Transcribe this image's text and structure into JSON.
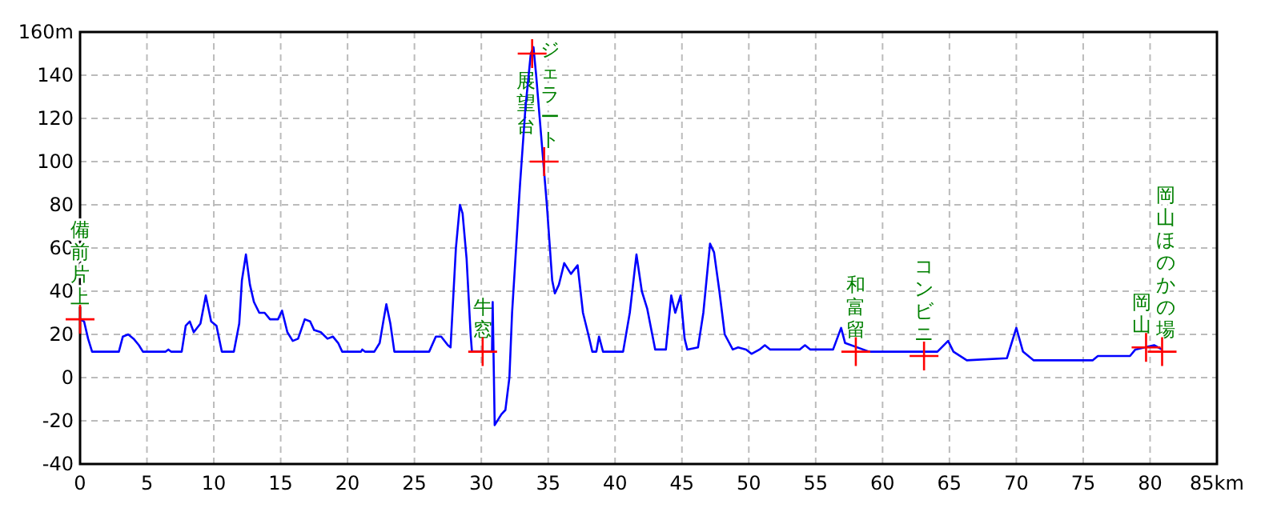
{
  "chart_data": {
    "type": "line",
    "x": [
      0,
      0.3,
      0.6,
      0.9,
      2.9,
      3.2,
      3.6,
      4.0,
      4.4,
      4.7,
      6.4,
      6.6,
      6.8,
      7.6,
      7.9,
      8.2,
      8.5,
      9.0,
      9.4,
      9.8,
      10.2,
      10.6,
      11.5,
      11.9,
      12.1,
      12.4,
      12.7,
      13.0,
      13.4,
      13.8,
      14.2,
      14.8,
      15.1,
      15.5,
      15.9,
      16.3,
      16.8,
      17.2,
      17.5,
      18.0,
      18.5,
      18.9,
      19.3,
      19.6,
      21.0,
      21.1,
      21.3,
      22.0,
      22.4,
      22.7,
      22.9,
      23.2,
      23.5,
      26.1,
      26.6,
      27.0,
      27.5,
      27.7,
      28.1,
      28.4,
      28.6,
      28.9,
      29.2,
      29.3,
      30.8,
      30.85,
      31.0,
      31.5,
      31.8,
      32.1,
      32.3,
      32.6,
      32.9,
      33.3,
      33.7,
      33.9,
      34.1,
      34.5,
      34.9,
      35.3,
      35.5,
      35.8,
      36.2,
      36.7,
      37.2,
      37.6,
      38.0,
      38.3,
      38.6,
      38.8,
      39.1,
      40.6,
      41.1,
      41.6,
      42.0,
      42.4,
      43.0,
      43.8,
      44.2,
      44.5,
      44.9,
      45.2,
      45.4,
      46.2,
      46.6,
      47.1,
      47.4,
      47.8,
      48.2,
      48.8,
      49.2,
      49.8,
      50.2,
      50.8,
      51.2,
      51.6,
      53.8,
      54.2,
      54.6,
      56.3,
      56.9,
      57.2,
      59.0,
      64.1,
      64.9,
      65.3,
      66.3,
      69.3,
      70.0,
      70.5,
      71.3,
      75.7,
      76.1,
      78.5,
      78.9,
      80.3,
      80.9
    ],
    "series": [
      {
        "color": "#0000ff",
        "values": [
          27,
          26,
          18,
          12,
          12,
          19,
          20,
          18,
          15,
          12,
          12,
          13,
          12,
          12,
          24,
          26,
          21,
          25,
          38,
          26,
          24,
          12,
          12,
          25,
          45,
          57,
          43,
          35,
          30,
          30,
          27,
          27,
          31,
          21,
          17,
          18,
          27,
          26,
          22,
          21,
          18,
          19,
          16,
          12,
          12,
          13,
          12,
          12,
          16,
          27,
          34,
          25,
          12,
          12,
          19,
          19,
          15,
          14,
          60,
          80,
          76,
          55,
          20,
          12,
          12,
          35,
          -22,
          -17,
          -15,
          0,
          30,
          60,
          90,
          125,
          150,
          153,
          140,
          110,
          80,
          45,
          39,
          43,
          53,
          48,
          52,
          30,
          20,
          12,
          12,
          19,
          12,
          12,
          30,
          57,
          40,
          32,
          13,
          13,
          38,
          30,
          38,
          18,
          13,
          14,
          30,
          62,
          58,
          40,
          20,
          13,
          14,
          13,
          11,
          13,
          15,
          13,
          13,
          15,
          13,
          13,
          23,
          16,
          12,
          12,
          17,
          12,
          8,
          9,
          23,
          12,
          8,
          8,
          10,
          10,
          13,
          15,
          13
        ]
      },
      {
        "type": "scatter",
        "marker": "cross",
        "color": "#ff0000",
        "x": [
          0,
          30.1,
          33.8,
          34.7,
          58.0,
          63.1,
          79.7,
          80.9
        ],
        "values": [
          27,
          12,
          150,
          100,
          12,
          10,
          14,
          12
        ]
      }
    ],
    "annotations": [
      {
        "text": "備前片上",
        "x": 0,
        "y": 27
      },
      {
        "text": "牛窓",
        "x": 30.1,
        "y": 12
      },
      {
        "text": "展望台",
        "x": 33.8,
        "y": 150
      },
      {
        "text": "ジェラート",
        "x": 34.7,
        "y": 100
      },
      {
        "text": "和富留",
        "x": 58.0,
        "y": 12
      },
      {
        "text": "コンビニ",
        "x": 63.1,
        "y": 10
      },
      {
        "text": "岡山",
        "x": 79.7,
        "y": 14
      },
      {
        "text": "岡山ほのかの場",
        "x": 80.9,
        "y": 12
      }
    ],
    "xlim": [
      0,
      85
    ],
    "xticks": [
      0,
      5,
      10,
      15,
      20,
      25,
      30,
      35,
      40,
      45,
      50,
      55,
      60,
      65,
      70,
      75,
      80,
      {
        "value": 85,
        "label": "85km"
      }
    ],
    "ylim": [
      -40,
      160
    ],
    "yticks": [
      -40,
      -20,
      0,
      20,
      40,
      60,
      80,
      100,
      120,
      140,
      {
        "value": 160,
        "label": "160m"
      }
    ],
    "grid": true
  }
}
